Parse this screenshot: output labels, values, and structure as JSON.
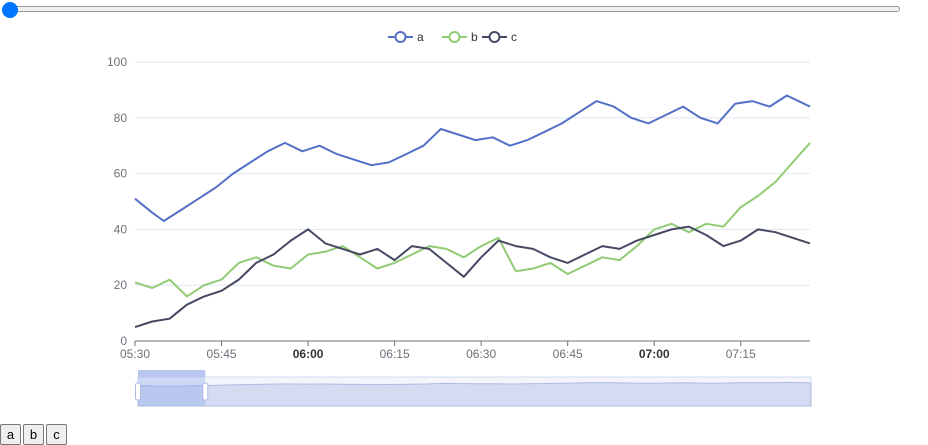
{
  "slider": {
    "value": 0,
    "min": 0,
    "max": 100
  },
  "chart_data": {
    "type": "line",
    "x_type": "time",
    "x_range": [
      "05:30",
      "07:27"
    ],
    "x_ticks": [
      {
        "label": "05:30",
        "bold": false
      },
      {
        "label": "05:45",
        "bold": false
      },
      {
        "label": "06:00",
        "bold": true
      },
      {
        "label": "06:15",
        "bold": false
      },
      {
        "label": "06:30",
        "bold": false
      },
      {
        "label": "06:45",
        "bold": false
      },
      {
        "label": "07:00",
        "bold": true
      },
      {
        "label": "07:15",
        "bold": false
      }
    ],
    "y_ticks": [
      "0",
      "20",
      "40",
      "60",
      "80",
      "100"
    ],
    "ylim": [
      0,
      100
    ],
    "grid": true,
    "legend_position": "top-center",
    "dataZoom": {
      "start": 0,
      "end": 10
    },
    "series": [
      {
        "name": "a",
        "color": "#5470c6",
        "points": [
          [
            "05:30",
            51
          ],
          [
            "05:33",
            46
          ],
          [
            "05:35",
            43
          ],
          [
            "05:38",
            47
          ],
          [
            "05:41",
            51
          ],
          [
            "05:44",
            55
          ],
          [
            "05:47",
            60
          ],
          [
            "05:50",
            64
          ],
          [
            "05:53",
            68
          ],
          [
            "05:56",
            71
          ],
          [
            "05:59",
            68
          ],
          [
            "06:02",
            70
          ],
          [
            "06:05",
            67
          ],
          [
            "06:08",
            65
          ],
          [
            "06:11",
            63
          ],
          [
            "06:14",
            64
          ],
          [
            "06:17",
            67
          ],
          [
            "06:20",
            70
          ],
          [
            "06:23",
            76
          ],
          [
            "06:26",
            74
          ],
          [
            "06:29",
            72
          ],
          [
            "06:32",
            73
          ],
          [
            "06:35",
            70
          ],
          [
            "06:38",
            72
          ],
          [
            "06:41",
            75
          ],
          [
            "06:44",
            78
          ],
          [
            "06:47",
            82
          ],
          [
            "06:50",
            86
          ],
          [
            "06:53",
            84
          ],
          [
            "06:56",
            80
          ],
          [
            "06:59",
            78
          ],
          [
            "07:02",
            81
          ],
          [
            "07:05",
            84
          ],
          [
            "07:08",
            80
          ],
          [
            "07:11",
            78
          ],
          [
            "07:14",
            85
          ],
          [
            "07:17",
            86
          ],
          [
            "07:20",
            84
          ],
          [
            "07:23",
            88
          ],
          [
            "07:26",
            85
          ],
          [
            "07:27",
            84
          ]
        ]
      },
      {
        "name": "b",
        "color": "#91cc75",
        "points": [
          [
            "05:30",
            21
          ],
          [
            "05:33",
            19
          ],
          [
            "05:36",
            22
          ],
          [
            "05:39",
            16
          ],
          [
            "05:42",
            20
          ],
          [
            "05:45",
            22
          ],
          [
            "05:48",
            28
          ],
          [
            "05:51",
            30
          ],
          [
            "05:54",
            27
          ],
          [
            "05:57",
            26
          ],
          [
            "06:00",
            31
          ],
          [
            "06:03",
            32
          ],
          [
            "06:06",
            34
          ],
          [
            "06:09",
            30
          ],
          [
            "06:12",
            26
          ],
          [
            "06:15",
            28
          ],
          [
            "06:18",
            31
          ],
          [
            "06:21",
            34
          ],
          [
            "06:24",
            33
          ],
          [
            "06:27",
            30
          ],
          [
            "06:30",
            34
          ],
          [
            "06:33",
            37
          ],
          [
            "06:36",
            25
          ],
          [
            "06:39",
            26
          ],
          [
            "06:42",
            28
          ],
          [
            "06:45",
            24
          ],
          [
            "06:48",
            27
          ],
          [
            "06:51",
            30
          ],
          [
            "06:54",
            29
          ],
          [
            "06:57",
            34
          ],
          [
            "07:00",
            40
          ],
          [
            "07:03",
            42
          ],
          [
            "07:06",
            39
          ],
          [
            "07:09",
            42
          ],
          [
            "07:12",
            41
          ],
          [
            "07:15",
            48
          ],
          [
            "07:18",
            52
          ],
          [
            "07:21",
            57
          ],
          [
            "07:24",
            64
          ],
          [
            "07:27",
            71
          ]
        ]
      },
      {
        "name": "c",
        "color": "#464963",
        "points": [
          [
            "05:30",
            5
          ],
          [
            "05:33",
            7
          ],
          [
            "05:36",
            8
          ],
          [
            "05:39",
            13
          ],
          [
            "05:42",
            16
          ],
          [
            "05:45",
            18
          ],
          [
            "05:48",
            22
          ],
          [
            "05:51",
            28
          ],
          [
            "05:54",
            31
          ],
          [
            "05:57",
            36
          ],
          [
            "06:00",
            40
          ],
          [
            "06:03",
            35
          ],
          [
            "06:06",
            33
          ],
          [
            "06:09",
            31
          ],
          [
            "06:12",
            33
          ],
          [
            "06:15",
            29
          ],
          [
            "06:18",
            34
          ],
          [
            "06:21",
            33
          ],
          [
            "06:24",
            28
          ],
          [
            "06:27",
            23
          ],
          [
            "06:30",
            30
          ],
          [
            "06:33",
            36
          ],
          [
            "06:36",
            34
          ],
          [
            "06:39",
            33
          ],
          [
            "06:42",
            30
          ],
          [
            "06:45",
            28
          ],
          [
            "06:48",
            31
          ],
          [
            "06:51",
            34
          ],
          [
            "06:54",
            33
          ],
          [
            "06:57",
            36
          ],
          [
            "07:00",
            38
          ],
          [
            "07:03",
            40
          ],
          [
            "07:06",
            41
          ],
          [
            "07:09",
            38
          ],
          [
            "07:12",
            34
          ],
          [
            "07:15",
            36
          ],
          [
            "07:18",
            40
          ],
          [
            "07:21",
            39
          ],
          [
            "07:24",
            37
          ],
          [
            "07:27",
            35
          ]
        ]
      }
    ]
  },
  "buttons": [
    {
      "label": "a"
    },
    {
      "label": "b"
    },
    {
      "label": "c"
    }
  ],
  "icons": {
    "legend_marker": "circle-line-icon",
    "zoom_handle": "drag-handle-icon"
  }
}
